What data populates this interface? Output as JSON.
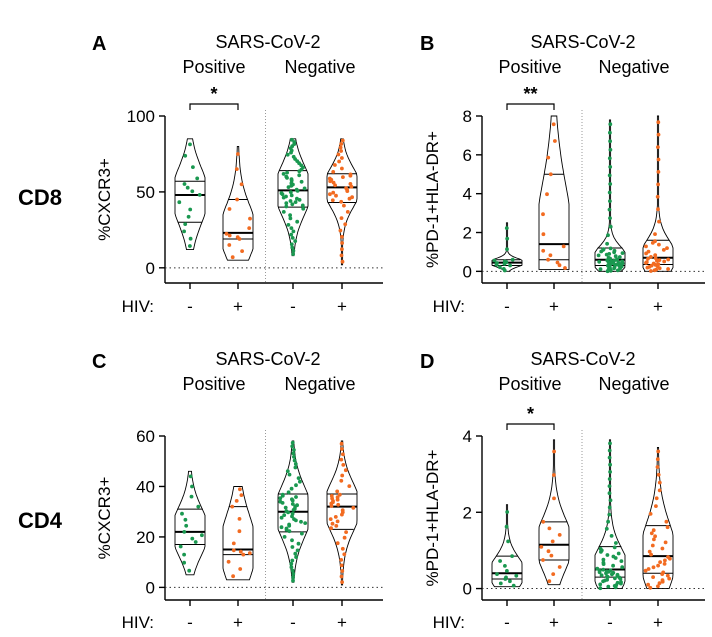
{
  "figure": {
    "row_labels": [
      "CD8",
      "CD4"
    ],
    "hiv_label": "HIV:",
    "hiv_ticks": [
      "-",
      "+",
      "-",
      "+"
    ]
  },
  "colors": {
    "hiv_negative_points": "#1a9850",
    "hiv_positive_points": "#f26b21",
    "violin_stroke": "#000000",
    "divider": "#999999"
  },
  "chart_data": [
    {
      "type": "violin",
      "panel": "A",
      "title": "SARS-CoV-2",
      "group_labels": [
        "Positive",
        "Negative"
      ],
      "ylabel": "%CXCR3+",
      "ylim": [
        -10,
        100
      ],
      "yticks": [
        0,
        50,
        100
      ],
      "categories": [
        "-",
        "+",
        "-",
        "+"
      ],
      "significance": [
        {
          "from": 0,
          "to": 1,
          "label": "*"
        }
      ],
      "series": [
        {
          "name": "SARS-CoV-2 Positive, HIV-",
          "median": 48,
          "q1": 30,
          "q3": 57,
          "min": 12,
          "max": 85,
          "n": 15
        },
        {
          "name": "SARS-CoV-2 Positive, HIV+",
          "median": 23,
          "q1": 19,
          "q3": 45,
          "min": 5,
          "max": 80,
          "n": 14
        },
        {
          "name": "SARS-CoV-2 Negative, HIV-",
          "median": 51,
          "q1": 40,
          "q3": 64,
          "min": 8,
          "max": 85,
          "n": 60
        },
        {
          "name": "SARS-CoV-2 Negative, HIV+",
          "median": 53,
          "q1": 43,
          "q3": 62,
          "min": 2,
          "max": 85,
          "n": 40
        }
      ]
    },
    {
      "type": "violin",
      "panel": "B",
      "title": "SARS-CoV-2",
      "group_labels": [
        "Positive",
        "Negative"
      ],
      "ylabel": "%PD-1+HLA-DR+",
      "ylim": [
        -0.6,
        8
      ],
      "yticks": [
        0,
        2,
        4,
        6,
        8
      ],
      "categories": [
        "-",
        "+",
        "-",
        "+"
      ],
      "significance": [
        {
          "from": 0,
          "to": 1,
          "label": "**"
        }
      ],
      "series": [
        {
          "name": "SARS-CoV-2 Positive, HIV-",
          "median": 0.45,
          "q1": 0.3,
          "q3": 0.6,
          "min": 0.0,
          "max": 2.5,
          "n": 14
        },
        {
          "name": "SARS-CoV-2 Positive, HIV+",
          "median": 1.4,
          "q1": 0.6,
          "q3": 5.0,
          "min": 0.1,
          "max": 8.0,
          "n": 14
        },
        {
          "name": "SARS-CoV-2 Negative, HIV-",
          "median": 0.6,
          "q1": 0.3,
          "q3": 1.2,
          "min": 0.0,
          "max": 7.8,
          "n": 60
        },
        {
          "name": "SARS-CoV-2 Negative, HIV+",
          "median": 0.7,
          "q1": 0.35,
          "q3": 1.6,
          "min": 0.0,
          "max": 8.0,
          "n": 40
        }
      ]
    },
    {
      "type": "violin",
      "panel": "C",
      "title": "SARS-CoV-2",
      "group_labels": [
        "Positive",
        "Negative"
      ],
      "ylabel": "%CXCR3+",
      "ylim": [
        -5,
        60
      ],
      "yticks": [
        0,
        20,
        40,
        60
      ],
      "categories": [
        "-",
        "+",
        "-",
        "+"
      ],
      "significance": [],
      "series": [
        {
          "name": "SARS-CoV-2 Positive, HIV-",
          "median": 22,
          "q1": 17,
          "q3": 31,
          "min": 5,
          "max": 46,
          "n": 15
        },
        {
          "name": "SARS-CoV-2 Positive, HIV+",
          "median": 15,
          "q1": 13,
          "q3": 32,
          "min": 3,
          "max": 40,
          "n": 14
        },
        {
          "name": "SARS-CoV-2 Negative, HIV-",
          "median": 30,
          "q1": 22,
          "q3": 37,
          "min": 2,
          "max": 58,
          "n": 60
        },
        {
          "name": "SARS-CoV-2 Negative, HIV+",
          "median": 32,
          "q1": 23,
          "q3": 37,
          "min": 1,
          "max": 58,
          "n": 40
        }
      ]
    },
    {
      "type": "violin",
      "panel": "D",
      "title": "SARS-CoV-2",
      "group_labels": [
        "Positive",
        "Negative"
      ],
      "ylabel": "%PD-1+HLA-DR+",
      "ylim": [
        -0.3,
        4
      ],
      "yticks": [
        0,
        2,
        4
      ],
      "categories": [
        "-",
        "+",
        "-",
        "+"
      ],
      "significance": [
        {
          "from": 0,
          "to": 1,
          "label": "*"
        }
      ],
      "series": [
        {
          "name": "SARS-CoV-2 Positive, HIV-",
          "median": 0.4,
          "q1": 0.25,
          "q3": 0.85,
          "min": 0.05,
          "max": 2.2,
          "n": 14
        },
        {
          "name": "SARS-CoV-2 Positive, HIV+",
          "median": 1.15,
          "q1": 0.75,
          "q3": 1.75,
          "min": 0.1,
          "max": 3.9,
          "n": 14
        },
        {
          "name": "SARS-CoV-2 Negative, HIV-",
          "median": 0.5,
          "q1": 0.3,
          "q3": 1.1,
          "min": 0.0,
          "max": 3.9,
          "n": 60
        },
        {
          "name": "SARS-CoV-2 Negative, HIV+",
          "median": 0.85,
          "q1": 0.4,
          "q3": 1.65,
          "min": 0.0,
          "max": 3.7,
          "n": 40
        }
      ]
    }
  ]
}
